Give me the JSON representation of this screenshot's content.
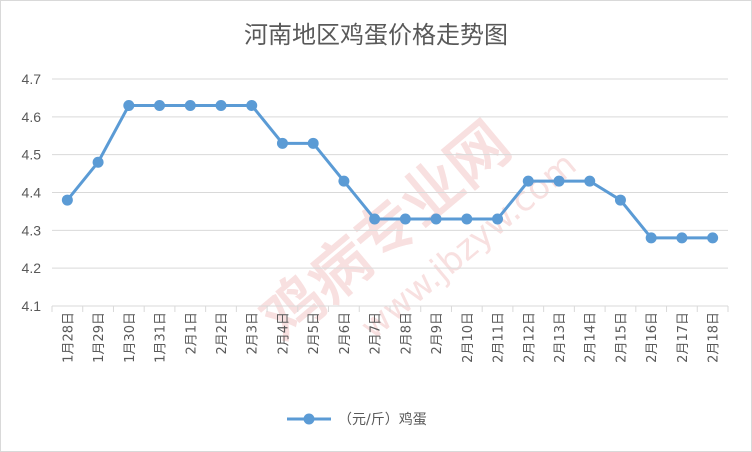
{
  "chart_data": {
    "type": "line",
    "title": "河南地区鸡蛋价格走势图",
    "categories": [
      "1月28日",
      "1月29日",
      "1月30日",
      "1月31日",
      "2月1日",
      "2月2日",
      "2月3日",
      "2月4日",
      "2月5日",
      "2月6日",
      "2月7日",
      "2月8日",
      "2月9日",
      "2月10日",
      "2月11日",
      "2月12日",
      "2月13日",
      "2月14日",
      "2月15日",
      "2月16日",
      "2月17日",
      "2月18日"
    ],
    "series": [
      {
        "name": "（元/斤）鸡蛋",
        "values": [
          4.38,
          4.48,
          4.63,
          4.63,
          4.63,
          4.63,
          4.63,
          4.53,
          4.53,
          4.43,
          4.33,
          4.33,
          4.33,
          4.33,
          4.33,
          4.43,
          4.43,
          4.43,
          4.38,
          4.28,
          4.28,
          4.28
        ]
      }
    ],
    "ylim": [
      4.1,
      4.7
    ],
    "yticks": [
      "4.1",
      "4.2",
      "4.3",
      "4.4",
      "4.5",
      "4.6",
      "4.7"
    ],
    "grid": true,
    "legend_position": "bottom",
    "line_color": "#5b9bd5",
    "grid_color": "#d9d9d9",
    "xlabel": "",
    "ylabel": ""
  }
}
